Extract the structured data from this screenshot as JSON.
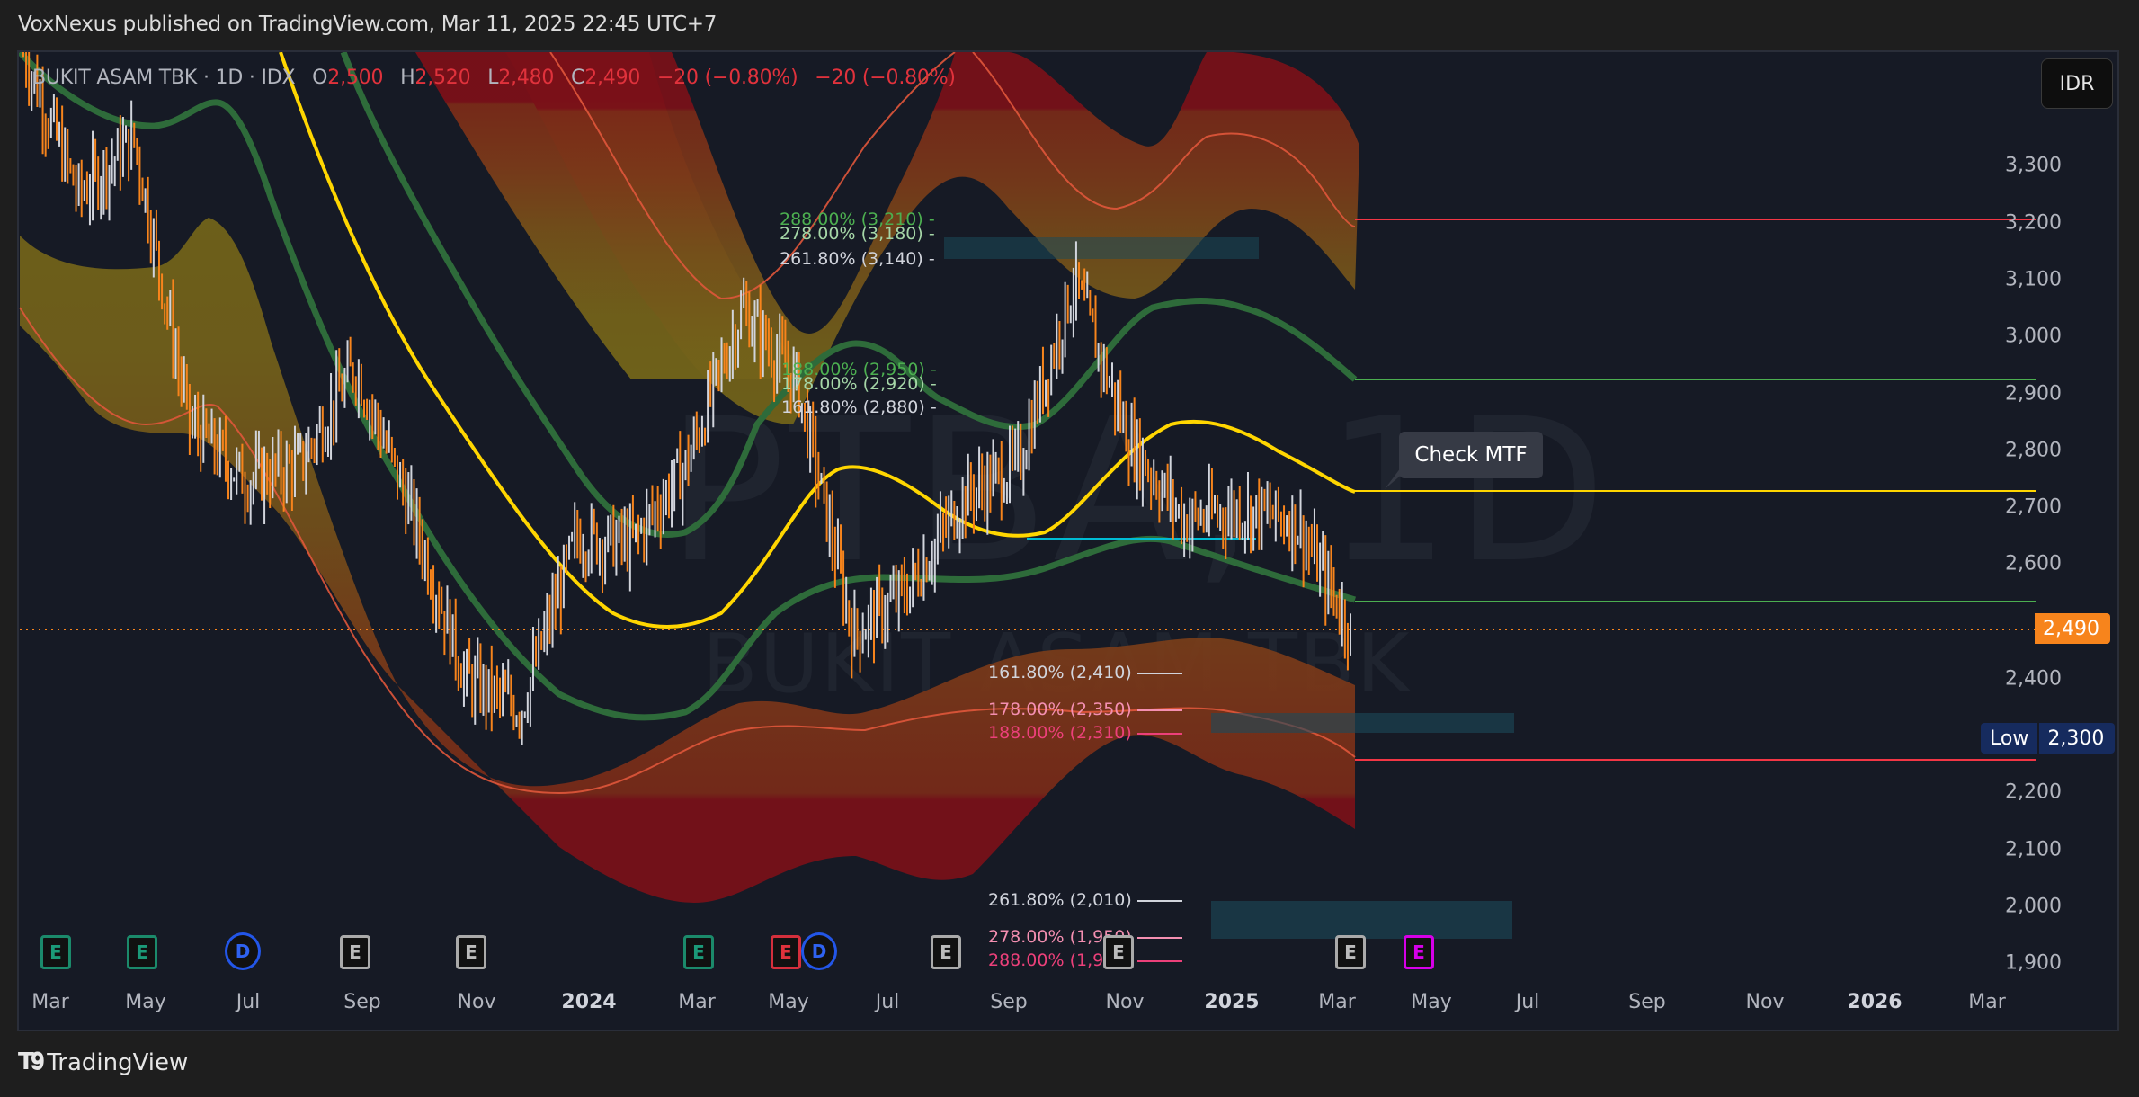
{
  "header": {
    "published": "VoxNexus published on TradingView.com, Mar 11, 2025 22:45 UTC+7"
  },
  "legend": {
    "symbol": "BUKIT ASAM TBK · 1D · IDX",
    "o_label": "O",
    "o_value": "2,500",
    "h_label": "H",
    "h_value": "2,520",
    "l_label": "L",
    "l_value": "2,480",
    "c_label": "C",
    "c_value": "2,490",
    "change1": "−20 (−0.80%)",
    "change2": "−20 (−0.80%)"
  },
  "currency_button": "IDR",
  "watermark": {
    "line1": "PTBA, 1D",
    "line2": "BUKIT ASAM TBK"
  },
  "price_axis": {
    "ticks": [
      "3,300",
      "3,200",
      "3,100",
      "3,000",
      "2,900",
      "2,800",
      "2,700",
      "2,600",
      "2,400",
      "2,200",
      "2,100",
      "2,000",
      "1,900"
    ],
    "last_price": "2,490",
    "low_label": "Low",
    "low_value": "2,300"
  },
  "time_axis": {
    "ticks": [
      "Mar",
      "May",
      "Jul",
      "Sep",
      "Nov",
      "2024",
      "Mar",
      "May",
      "Jul",
      "Sep",
      "Nov",
      "2025",
      "Mar",
      "May",
      "Jul",
      "Sep",
      "Nov",
      "2026",
      "Mar"
    ]
  },
  "callout": {
    "text": "Check MTF"
  },
  "fib_upper": [
    {
      "label": "288.00% (3,210)",
      "color": "#4caf50"
    },
    {
      "label": "278.00% (3,180)",
      "color": "#a5d6a7"
    },
    {
      "label": "261.80% (3,140)",
      "color": "#d1d4dc"
    },
    {
      "label": "188.00% (2,950)",
      "color": "#4caf50"
    },
    {
      "label": "178.00% (2,920)",
      "color": "#a5d6a7"
    },
    {
      "label": "161.80% (2,880)",
      "color": "#d1d4dc"
    }
  ],
  "fib_lower": [
    {
      "label": "161.80% (2,410)",
      "color": "#d1d4dc"
    },
    {
      "label": "178.00% (2,350)",
      "color": "#f48fb1"
    },
    {
      "label": "188.00% (2,310)",
      "color": "#ec407a"
    },
    {
      "label": "261.80% (2,010)",
      "color": "#d1d4dc"
    },
    {
      "label": "278.00% (1,950)",
      "color": "#f48fb1"
    },
    {
      "label": "288.00% (1,910)",
      "color": "#ec407a"
    }
  ],
  "events": [
    {
      "type": "earnings",
      "letter": "E",
      "style": "teal"
    },
    {
      "type": "earnings",
      "letter": "E",
      "style": "teal"
    },
    {
      "type": "dividend",
      "letter": "D",
      "style": "div"
    },
    {
      "type": "earnings",
      "letter": "E",
      "style": "grey"
    },
    {
      "type": "earnings",
      "letter": "E",
      "style": "grey"
    },
    {
      "type": "earnings",
      "letter": "E",
      "style": "teal"
    },
    {
      "type": "earnings",
      "letter": "E",
      "style": "red"
    },
    {
      "type": "dividend",
      "letter": "D",
      "style": "div"
    },
    {
      "type": "earnings",
      "letter": "E",
      "style": "grey"
    },
    {
      "type": "earnings",
      "letter": "E",
      "style": "grey"
    },
    {
      "type": "earnings",
      "letter": "E",
      "style": "grey"
    },
    {
      "type": "earnings",
      "letter": "E",
      "style": "magenta"
    }
  ],
  "footer": {
    "brand": "TradingView"
  },
  "colors": {
    "background": "#161a25",
    "candle_up": "#d1d4dc",
    "candle_down": "#f7841c",
    "midline": "#ffd600",
    "green_band": "#2e6b3a",
    "resistance_line": "#f23645",
    "support_line": "#4caf50",
    "last_price": "#f7841c",
    "low_badge": "#162b5e"
  },
  "chart_data": {
    "type": "bar",
    "title": "BUKIT ASAM TBK · 1D · IDX",
    "symbol": "PTBA",
    "interval": "1D",
    "exchange": "IDX",
    "currency": "IDR",
    "ohlc_last": {
      "open": 2500,
      "high": 2520,
      "low": 2480,
      "close": 2490,
      "change": -20,
      "change_pct": -0.8
    },
    "ylabel": "",
    "ylim": [
      1850,
      3400
    ],
    "y_ticks": [
      1900,
      2000,
      2100,
      2200,
      2300,
      2400,
      2500,
      2600,
      2700,
      2800,
      2900,
      3000,
      3100,
      3200,
      3300
    ],
    "x_ticks": [
      "Mar 2023",
      "May",
      "Jul",
      "Sep",
      "Nov",
      "2024",
      "Mar",
      "May",
      "Jul",
      "Sep",
      "Nov",
      "2025",
      "Mar",
      "May",
      "Jul",
      "Sep",
      "Nov",
      "2026",
      "Mar"
    ],
    "approx_price_path": [
      {
        "x": "Mar 2023",
        "y": 3500
      },
      {
        "x": "Apr 2023",
        "y": 3250
      },
      {
        "x": "May 2023",
        "y": 3350
      },
      {
        "x": "Jun 2023",
        "y": 2850
      },
      {
        "x": "Jul 2023",
        "y": 2750
      },
      {
        "x": "Aug 2023",
        "y": 2780
      },
      {
        "x": "Sep 2023",
        "y": 2950
      },
      {
        "x": "Oct 2023",
        "y": 2700
      },
      {
        "x": "Nov 2023",
        "y": 2400
      },
      {
        "x": "Dec 2023",
        "y": 2350
      },
      {
        "x": "Jan 2024",
        "y": 2650
      },
      {
        "x": "Feb 2024",
        "y": 2640
      },
      {
        "x": "Mar 2024",
        "y": 2780
      },
      {
        "x": "Apr 2024",
        "y": 3050
      },
      {
        "x": "May 2024",
        "y": 2920
      },
      {
        "x": "Jun 2024",
        "y": 2480
      },
      {
        "x": "Jul 2024",
        "y": 2560
      },
      {
        "x": "Aug 2024",
        "y": 2720
      },
      {
        "x": "Sep 2024",
        "y": 2780
      },
      {
        "x": "Oct 2024",
        "y": 3100
      },
      {
        "x": "Nov 2024",
        "y": 2820
      },
      {
        "x": "Dec 2024",
        "y": 2680
      },
      {
        "x": "Jan 2025",
        "y": 2700
      },
      {
        "x": "Feb 2025",
        "y": 2680
      },
      {
        "x": "Mar 2025",
        "y": 2490
      }
    ],
    "horizontal_levels": [
      {
        "name": "upper band end (resistance)",
        "value": 3205,
        "color": "#f23645"
      },
      {
        "name": "upper green band end",
        "value": 2930,
        "color": "#4caf50"
      },
      {
        "name": "midline end",
        "value": 2730,
        "color": "#ffd600"
      },
      {
        "name": "cyan level",
        "value": 2650,
        "color": "#00bcd4"
      },
      {
        "name": "lower green band end",
        "value": 2540,
        "color": "#4caf50"
      },
      {
        "name": "last price",
        "value": 2490,
        "color": "#f7841c"
      },
      {
        "name": "lower band end (support)",
        "value": 2260,
        "color": "#f23645"
      },
      {
        "name": "Low",
        "value": 2300,
        "color": "#162b5e"
      }
    ],
    "fibonacci_levels": {
      "upper": [
        {
          "pct": 288.0,
          "price": 3210
        },
        {
          "pct": 278.0,
          "price": 3180
        },
        {
          "pct": 261.8,
          "price": 3140
        },
        {
          "pct": 188.0,
          "price": 2950
        },
        {
          "pct": 178.0,
          "price": 2920
        },
        {
          "pct": 161.8,
          "price": 2880
        }
      ],
      "lower": [
        {
          "pct": 161.8,
          "price": 2410
        },
        {
          "pct": 178.0,
          "price": 2350
        },
        {
          "pct": 188.0,
          "price": 2310
        },
        {
          "pct": 261.8,
          "price": 2010
        },
        {
          "pct": 278.0,
          "price": 1950
        },
        {
          "pct": 288.0,
          "price": 1910
        }
      ]
    },
    "annotations": [
      "Check MTF"
    ],
    "grid": false,
    "legend_position": "top-left"
  }
}
